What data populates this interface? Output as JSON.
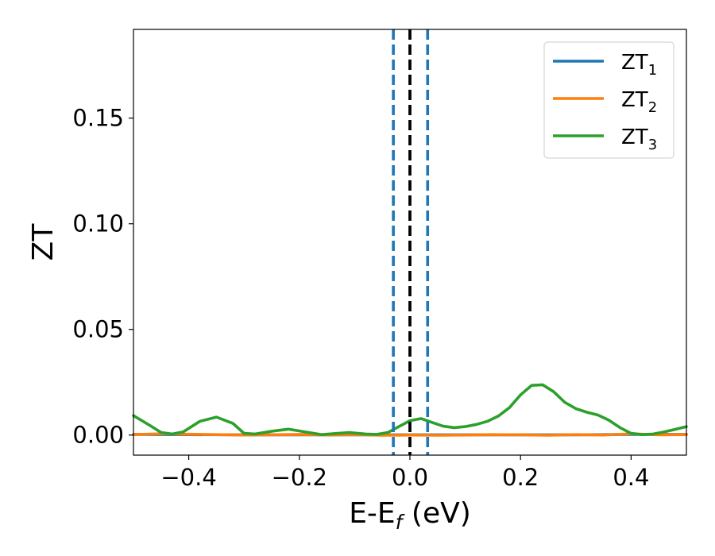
{
  "chart_data": {
    "type": "line",
    "xlabel": "E-E",
    "xlabel_sub": "f",
    "xlabel_unit": " (eV)",
    "ylabel": "ZT",
    "xlim": [
      -0.5,
      0.5
    ],
    "ylim": [
      -0.0095,
      0.192
    ],
    "xticks": [
      -0.4,
      -0.2,
      0.0,
      0.2,
      0.4
    ],
    "xtick_labels": [
      "−0.4",
      "−0.2",
      "0.0",
      "0.2",
      "0.4"
    ],
    "yticks": [
      0.0,
      0.05,
      0.1,
      0.15
    ],
    "ytick_labels": [
      "0.00",
      "0.05",
      "0.10",
      "0.15"
    ],
    "grid": false,
    "legend_position": "top-right",
    "vertical_lines": [
      {
        "x": -0.03,
        "style": "dashed",
        "color": "#1f77b4"
      },
      {
        "x": 0.0,
        "style": "dashed",
        "color": "#1f77b4"
      },
      {
        "x": 0.032,
        "style": "dashed",
        "color": "#1f77b4"
      },
      {
        "x": 0.0,
        "style": "dashed",
        "color": "#000000"
      }
    ],
    "series": [
      {
        "name": "ZT",
        "name_sub": "1",
        "color": "#1f77b4",
        "x": [
          -0.5,
          -0.4,
          -0.3,
          -0.2,
          -0.1,
          0.0,
          0.1,
          0.2,
          0.3,
          0.4,
          0.5
        ],
        "y": [
          0.0003,
          0.0002,
          0.0001,
          0.0001,
          0.0001,
          0.0001,
          0.0001,
          0.0001,
          0.0001,
          0.0003,
          0.0003
        ]
      },
      {
        "name": "ZT",
        "name_sub": "2",
        "color": "#ff7f0e",
        "x": [
          -0.5,
          -0.45,
          -0.4,
          -0.35,
          -0.3,
          -0.25,
          -0.2,
          -0.15,
          -0.1,
          -0.05,
          0.0,
          0.05,
          0.1,
          0.15,
          0.2,
          0.25,
          0.3,
          0.35,
          0.4,
          0.45,
          0.5
        ],
        "y": [
          0.0002,
          0.0006,
          0.0004,
          0.0002,
          0.0,
          0.0001,
          0.0003,
          0.0,
          0.0002,
          -0.0001,
          0.0,
          -0.0001,
          0.0,
          0.0002,
          0.0001,
          -0.0001,
          0.0002,
          0.0,
          0.0006,
          0.0001,
          0.0002
        ]
      },
      {
        "name": "ZT",
        "name_sub": "3",
        "color": "#2ca02c",
        "x": [
          -0.5,
          -0.47,
          -0.45,
          -0.43,
          -0.41,
          -0.38,
          -0.35,
          -0.32,
          -0.3,
          -0.28,
          -0.25,
          -0.22,
          -0.19,
          -0.16,
          -0.13,
          -0.11,
          -0.08,
          -0.06,
          -0.04,
          -0.02,
          0.0,
          0.02,
          0.04,
          0.06,
          0.08,
          0.1,
          0.12,
          0.14,
          0.16,
          0.18,
          0.2,
          0.22,
          0.24,
          0.26,
          0.28,
          0.3,
          0.32,
          0.34,
          0.36,
          0.38,
          0.4,
          0.42,
          0.44,
          0.46,
          0.48,
          0.5
        ],
        "y": [
          0.0092,
          0.0045,
          0.0012,
          0.0005,
          0.0015,
          0.0065,
          0.0085,
          0.0055,
          0.0008,
          0.0005,
          0.0018,
          0.0028,
          0.0015,
          0.0002,
          0.0008,
          0.0012,
          0.0005,
          0.0003,
          0.0012,
          0.004,
          0.0068,
          0.0078,
          0.006,
          0.0042,
          0.0035,
          0.004,
          0.005,
          0.0065,
          0.009,
          0.013,
          0.019,
          0.0235,
          0.0238,
          0.0205,
          0.0155,
          0.0125,
          0.0108,
          0.0095,
          0.007,
          0.0035,
          0.0008,
          0.0002,
          0.0005,
          0.0015,
          0.0027,
          0.004
        ]
      }
    ]
  }
}
